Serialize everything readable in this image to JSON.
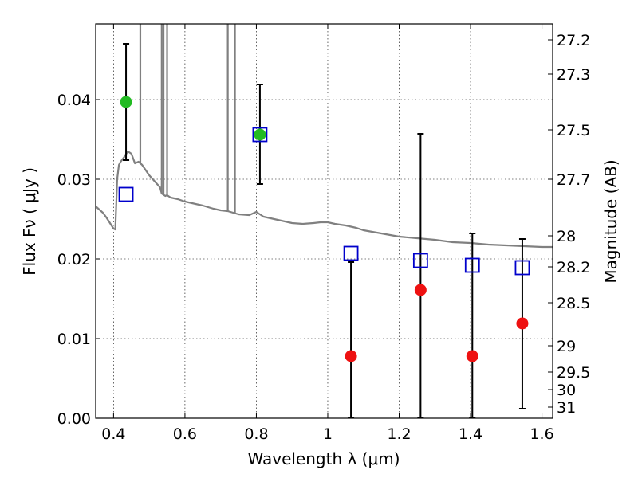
{
  "chart_data": {
    "type": "scatter",
    "xlabel": "Wavelength  λ (μm)",
    "ylabel": "Flux  Fν  ( μJy )",
    "ylabel_right": "Magnitude (AB)",
    "xlim": [
      0.35,
      1.63
    ],
    "ylim": [
      0.0,
      0.0495
    ],
    "x_ticks": [
      0.4,
      0.6,
      0.8,
      1.0,
      1.2,
      1.4,
      1.6
    ],
    "x_tick_labels": [
      "0.4",
      "0.6",
      "0.8",
      "1",
      "1.2",
      "1.4",
      "1.6"
    ],
    "y_ticks": [
      0.0,
      0.01,
      0.02,
      0.03,
      0.04
    ],
    "y_tick_labels": [
      "0.00",
      "0.01",
      "0.02",
      "0.03",
      "0.04"
    ],
    "right_ticks": [
      {
        "flux": 0.0475,
        "label": "27.2"
      },
      {
        "flux": 0.0432,
        "label": "27.3"
      },
      {
        "flux": 0.0362,
        "label": "27.5"
      },
      {
        "flux": 0.03,
        "label": "27.7"
      },
      {
        "flux": 0.0229,
        "label": "28"
      },
      {
        "flux": 0.019,
        "label": "28.2"
      },
      {
        "flux": 0.0145,
        "label": "28.5"
      },
      {
        "flux": 0.0091,
        "label": "29"
      },
      {
        "flux": 0.0058,
        "label": "29.5"
      },
      {
        "flux": 0.0036,
        "label": "30"
      },
      {
        "flux": 0.0014,
        "label": "31"
      }
    ],
    "grid": true,
    "colors": {
      "model": "#808080",
      "model_points": "#0000cc",
      "detections": "#22bb22",
      "non_detections": "#ee1111",
      "errorbars": "#000000"
    },
    "model_spectrum": {
      "x": [
        0.35,
        0.36,
        0.37,
        0.38,
        0.39,
        0.4,
        0.405,
        0.41,
        0.415,
        0.42,
        0.43,
        0.44,
        0.45,
        0.46,
        0.47,
        0.48,
        0.5,
        0.52,
        0.53,
        0.535,
        0.545,
        0.55,
        0.56,
        0.58,
        0.6,
        0.62,
        0.65,
        0.68,
        0.7,
        0.72,
        0.75,
        0.78,
        0.8,
        0.82,
        0.85,
        0.88,
        0.9,
        0.93,
        0.96,
        0.98,
        1.0,
        1.02,
        1.05,
        1.08,
        1.1,
        1.15,
        1.2,
        1.25,
        1.3,
        1.35,
        1.4,
        1.45,
        1.5,
        1.55,
        1.6,
        1.63
      ],
      "y": [
        0.0266,
        0.0262,
        0.0258,
        0.0252,
        0.0245,
        0.0238,
        0.0237,
        0.03,
        0.0318,
        0.0322,
        0.0328,
        0.0335,
        0.0332,
        0.032,
        0.0322,
        0.0318,
        0.0305,
        0.0295,
        0.029,
        0.0282,
        0.0279,
        0.028,
        0.0277,
        0.0275,
        0.0272,
        0.027,
        0.0267,
        0.0263,
        0.0261,
        0.026,
        0.0256,
        0.0255,
        0.0259,
        0.0253,
        0.025,
        0.0247,
        0.0245,
        0.0244,
        0.0245,
        0.0246,
        0.0246,
        0.0244,
        0.0242,
        0.0239,
        0.0236,
        0.0232,
        0.0228,
        0.0226,
        0.0224,
        0.0221,
        0.022,
        0.0218,
        0.0217,
        0.0216,
        0.0215,
        0.0215
      ]
    },
    "emission_lines": [
      0.475,
      0.535,
      0.54,
      0.55,
      0.72,
      0.74
    ],
    "model_points": {
      "x": [
        0.435,
        0.81,
        1.065,
        1.26,
        1.405,
        1.545
      ],
      "y": [
        0.0281,
        0.0356,
        0.0207,
        0.0198,
        0.0192,
        0.0189
      ]
    },
    "detections": [
      {
        "x": 0.435,
        "y": 0.0397,
        "yerr_low": 0.0073,
        "yerr_high": 0.0073
      },
      {
        "x": 0.81,
        "y": 0.0356,
        "yerr_low": 0.0062,
        "yerr_high": 0.0063
      }
    ],
    "non_detections": [
      {
        "x": 1.065,
        "y": 0.0078,
        "yerr_low": 0.0078,
        "yerr_high": 0.0118
      },
      {
        "x": 1.26,
        "y": 0.0161,
        "yerr_low": 0.0161,
        "yerr_high": 0.0196
      },
      {
        "x": 1.405,
        "y": 0.0078,
        "yerr_low": 0.0078,
        "yerr_high": 0.0154
      },
      {
        "x": 1.545,
        "y": 0.0119,
        "yerr_low": 0.0107,
        "yerr_high": 0.0106
      }
    ]
  }
}
